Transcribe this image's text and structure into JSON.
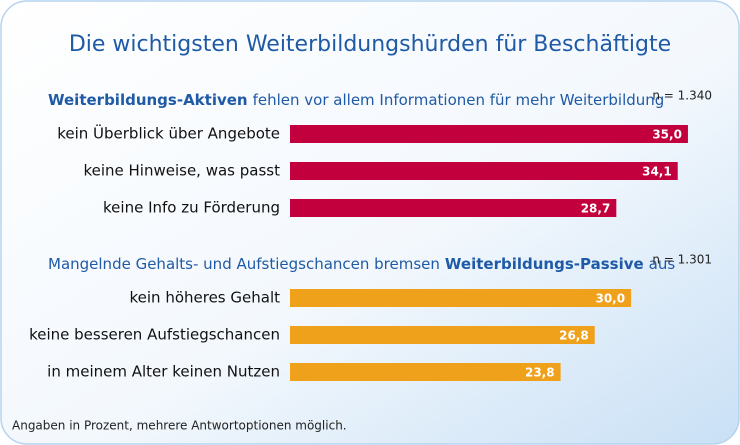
{
  "title": "Die wichtigsten Weiterbildungshürden für Beschäftigte",
  "footnote": "Angaben in Prozent, mehrere Antwortoptionen möglich.",
  "chart_data": [
    {
      "type": "bar",
      "orientation": "horizontal",
      "subtitle_parts": [
        {
          "text": "Weiterbildungs-Aktiven",
          "bold": true
        },
        {
          "text": "fehlen vor allem Informationen für mehr Weiterbildung",
          "bold": false
        }
      ],
      "note": "n = 1.340",
      "categories": [
        "kein Überblick über Angebote",
        "keine Hinweise, was passt",
        "keine Info zu Förderung"
      ],
      "values": [
        35.0,
        34.1,
        28.7
      ],
      "value_labels": [
        "35,0",
        "34,1",
        "28,7"
      ],
      "color": "#c2003d"
    },
    {
      "type": "bar",
      "orientation": "horizontal",
      "subtitle_parts": [
        {
          "text": "Mangelnde Gehalts- und Aufstiegschancen bremsen",
          "bold": false
        },
        {
          "text": "Weiterbildungs-Passive",
          "bold": true
        },
        {
          "text": "aus",
          "bold": false
        }
      ],
      "note": "n = 1.301",
      "categories": [
        "kein höheres Gehalt",
        "keine besseren Aufstiegschancen",
        "in meinem Alter keinen Nutzen"
      ],
      "values": [
        30.0,
        26.8,
        23.8
      ],
      "value_labels": [
        "30,0",
        "26,8",
        "23,8"
      ],
      "color": "#f0a11b"
    }
  ]
}
